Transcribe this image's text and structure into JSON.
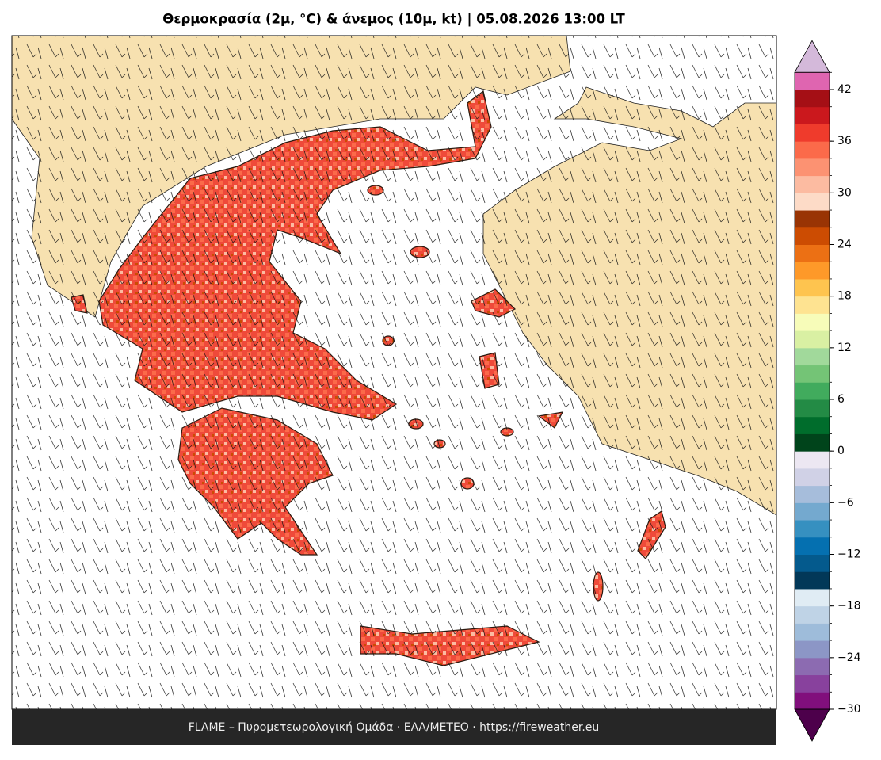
{
  "title": "Θερμοκρασία (2μ, °C) & άνεμος (10μ, kt)  |  05.08.2026 13:00 LT",
  "footer": "FLAME – Πυρομετεωρολογική Ομάδα · ΕΑΑ/METEO · https://fireweather.eu",
  "colorbar": {
    "range": [
      -30,
      44
    ],
    "colors": [
      "#810f7c",
      "#88419d",
      "#8c6bb1",
      "#8c96c6",
      "#9ebcda",
      "#bfd3e6",
      "#e0ecf4",
      "#023858",
      "#045a8d",
      "#0570b0",
      "#3690c0",
      "#74a9cf",
      "#a6bddb",
      "#d0d1e6",
      "#ece7f2",
      "#00441b",
      "#006d2c",
      "#238b45",
      "#41ab5d",
      "#74c476",
      "#a1d99b",
      "#d9f0a3",
      "#f7fcb9",
      "#fee391",
      "#fec44f",
      "#fe9929",
      "#ec7014",
      "#cc4c02",
      "#993404",
      "#fddbc7",
      "#fcbba1",
      "#fc9272",
      "#fb6a4a",
      "#ef3b2c",
      "#cb181d",
      "#a50f15",
      "#df65b0"
    ],
    "extend_colors": [
      "#4d004b",
      "#d4b9da"
    ],
    "ticks": [
      {
        "value": -30,
        "label": "−30"
      },
      {
        "value": -24,
        "label": "−24"
      },
      {
        "value": -18,
        "label": "−18"
      },
      {
        "value": -12,
        "label": "−12"
      },
      {
        "value": -6,
        "label": "−6"
      },
      0,
      6,
      12,
      18,
      24,
      30,
      36,
      42
    ]
  }
}
